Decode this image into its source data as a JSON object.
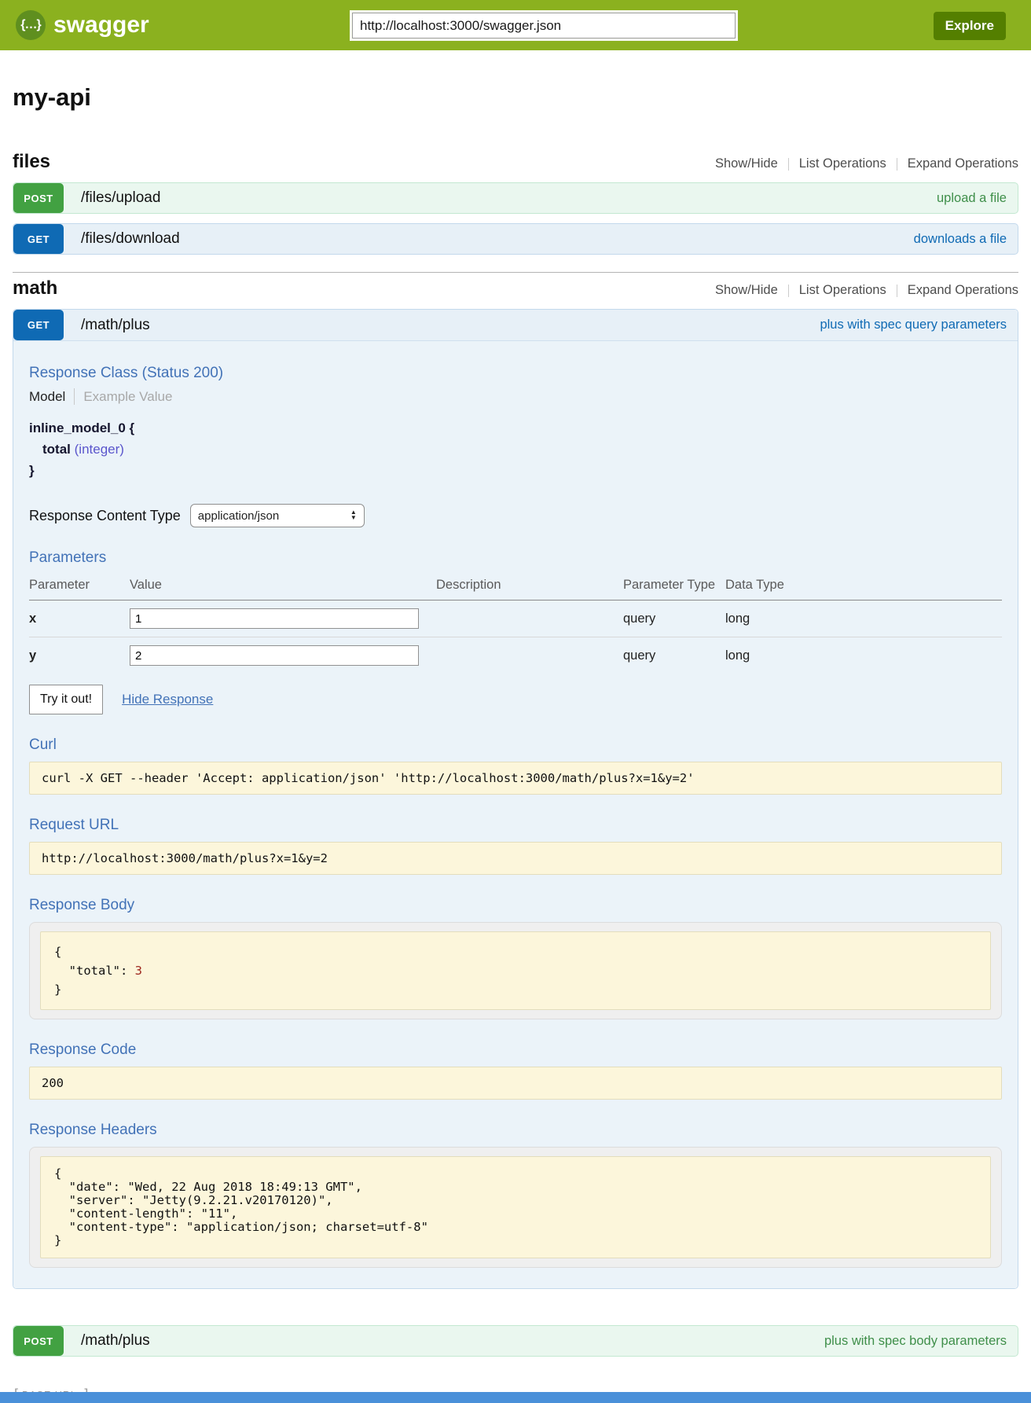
{
  "header": {
    "logo_glyph": "{…}",
    "logo_text": "swagger",
    "url_value": "http://localhost:3000/swagger.json",
    "explore_label": "Explore"
  },
  "colors": {
    "header_green": "#8bb11f",
    "explore_button_green": "#547f00",
    "get_badge_blue": "#0f6ab4",
    "post_badge_green": "#42a142",
    "panel_heading_blue": "#4272b7",
    "code_box_cream": "#fcf6db",
    "json_number_red": "#9d261d",
    "bottom_bar_blue": "#4a90d9"
  },
  "title": "my-api",
  "files_section": {
    "heading": "files",
    "controls": {
      "show_hide": "Show/Hide",
      "list_operations": "List Operations",
      "expand_operations": "Expand Operations"
    },
    "upload_row": {
      "method": "POST",
      "path": "/files/upload",
      "summary": "upload a file"
    },
    "download_row": {
      "method": "GET",
      "path": "/files/download",
      "summary": "downloads a file"
    }
  },
  "math_section": {
    "heading": "math",
    "controls": {
      "show_hide": "Show/Hide",
      "list_operations": "List Operations",
      "expand_operations": "Expand Operations"
    },
    "get_row": {
      "method": "GET",
      "path": "/math/plus",
      "summary": "plus with spec query parameters"
    },
    "post_row": {
      "method": "POST",
      "path": "/math/plus",
      "summary": "plus with spec body parameters"
    }
  },
  "detail": {
    "response_class_heading": "Response Class (Status 200)",
    "tab_model": "Model",
    "tab_example": "Example Value",
    "model_name": "inline_model_0 {",
    "model_property": "total",
    "model_property_type": "(integer)",
    "model_close": "}",
    "response_content_type_label": "Response Content Type",
    "response_content_type_value": "application/json",
    "parameters_heading": "Parameters",
    "param_headers": {
      "parameter": "Parameter",
      "value": "Value",
      "description": "Description",
      "parameter_type": "Parameter Type",
      "data_type": "Data Type"
    },
    "param_rows": [
      {
        "name": "x",
        "value": "1",
        "description": "",
        "parameter_type": "query",
        "data_type": "long"
      },
      {
        "name": "y",
        "value": "2",
        "description": "",
        "parameter_type": "query",
        "data_type": "long"
      }
    ],
    "try_it_out_label": "Try it out!",
    "hide_response_label": "Hide Response",
    "curl_heading": "Curl",
    "curl_command": "curl -X GET --header 'Accept: application/json' 'http://localhost:3000/math/plus?x=1&y=2'",
    "request_url_heading": "Request URL",
    "request_url_value": "http://localhost:3000/math/plus?x=1&y=2",
    "response_body_heading": "Response Body",
    "response_body": {
      "line_open": "{",
      "key_part": "  \"total\": ",
      "value_part": "3",
      "line_close": "}"
    },
    "response_code_heading": "Response Code",
    "response_code_value": "200",
    "response_headers_heading": "Response Headers",
    "response_headers_lines": [
      "{",
      "  \"date\": \"Wed, 22 Aug 2018 18:49:13 GMT\",",
      "  \"server\": \"Jetty(9.2.21.v20170120)\",",
      "  \"content-length\": \"11\",",
      "  \"content-type\": \"application/json; charset=utf-8\"",
      "}"
    ]
  },
  "footer": {
    "bracket_open": "[",
    "base_url_label": "BASE URL:",
    "bracket_close": "]"
  }
}
